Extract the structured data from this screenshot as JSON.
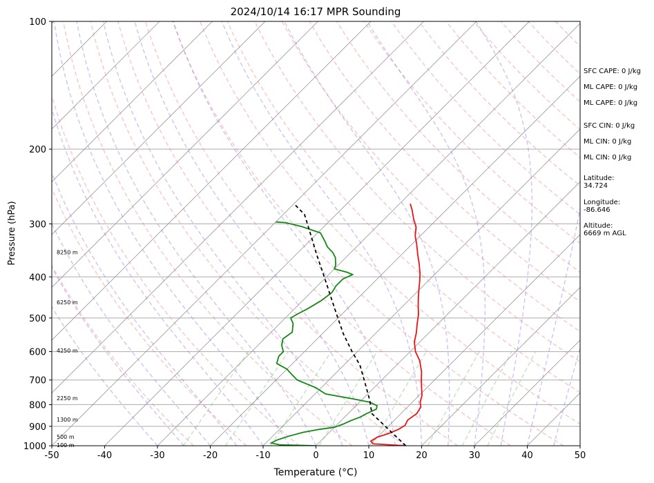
{
  "chart_data": {
    "type": "line",
    "title": "2024/10/14 16:17 MPR Sounding",
    "xlabel": "Temperature (°C)",
    "ylabel": "Pressure (hPa)",
    "xlim": [
      -50,
      50
    ],
    "ylim": [
      1000,
      100
    ],
    "y_scale": "log",
    "skew_t": true,
    "grid": true,
    "x_ticks": [
      "-50",
      "-40",
      "-30",
      "-20",
      "-10",
      "0",
      "10",
      "20",
      "30",
      "40",
      "50"
    ],
    "y_ticks": [
      "100",
      "200",
      "300",
      "400",
      "500",
      "600",
      "700",
      "800",
      "900",
      "1000"
    ],
    "series": [
      {
        "role": "temperature",
        "color": "#ee1111",
        "points": [
          [
            17,
            1000
          ],
          [
            10.5,
            990
          ],
          [
            9.5,
            975
          ],
          [
            10,
            955
          ],
          [
            11.5,
            935
          ],
          [
            12.5,
            915
          ],
          [
            13,
            895
          ],
          [
            12.5,
            870
          ],
          [
            13,
            840
          ],
          [
            12.5,
            810
          ],
          [
            11.5,
            790
          ],
          [
            10.5,
            760
          ],
          [
            9,
            730
          ],
          [
            7.5,
            700
          ],
          [
            6,
            670
          ],
          [
            3.5,
            630
          ],
          [
            1,
            600
          ],
          [
            -1,
            570
          ],
          [
            -2.5,
            540
          ],
          [
            -4,
            515
          ],
          [
            -5.5,
            490
          ],
          [
            -7,
            470
          ],
          [
            -8.5,
            450
          ],
          [
            -10,
            430
          ],
          [
            -11.5,
            410
          ],
          [
            -13,
            392
          ],
          [
            -15,
            372
          ],
          [
            -17,
            354
          ],
          [
            -19,
            336
          ],
          [
            -21,
            320
          ],
          [
            -22.5,
            305
          ],
          [
            -24.5,
            292
          ],
          [
            -26.5,
            278
          ],
          [
            -28,
            269
          ]
        ]
      },
      {
        "role": "dewpoint",
        "color": "#118811",
        "points": [
          [
            0,
            1000
          ],
          [
            -7,
            995
          ],
          [
            -9,
            985
          ],
          [
            -8.5,
            970
          ],
          [
            -7,
            950
          ],
          [
            -5,
            930
          ],
          [
            -2.5,
            915
          ],
          [
            0,
            905
          ],
          [
            1,
            890
          ],
          [
            2,
            870
          ],
          [
            3,
            855
          ],
          [
            3.5,
            840
          ],
          [
            4.5,
            820
          ],
          [
            4,
            805
          ],
          [
            2,
            790
          ],
          [
            -2,
            775
          ],
          [
            -8,
            755
          ],
          [
            -11,
            730
          ],
          [
            -16,
            700
          ],
          [
            -18,
            680
          ],
          [
            -20,
            660
          ],
          [
            -23,
            640
          ],
          [
            -24,
            615
          ],
          [
            -24,
            600
          ],
          [
            -25.5,
            580
          ],
          [
            -26.5,
            560
          ],
          [
            -26,
            540
          ],
          [
            -27.5,
            515
          ],
          [
            -29,
            500
          ],
          [
            -28.5,
            490
          ],
          [
            -27.5,
            475
          ],
          [
            -26.5,
            455
          ],
          [
            -26,
            435
          ],
          [
            -26.5,
            420
          ],
          [
            -26.5,
            405
          ],
          [
            -25.5,
            395
          ],
          [
            -27,
            390
          ],
          [
            -30,
            383
          ],
          [
            -30.5,
            375
          ],
          [
            -32,
            360
          ],
          [
            -33.5,
            350
          ],
          [
            -35.5,
            340
          ],
          [
            -37,
            330
          ],
          [
            -39.5,
            315
          ],
          [
            -44,
            305
          ],
          [
            -48,
            298
          ],
          [
            -50,
            297
          ]
        ]
      },
      {
        "role": "parcel",
        "color": "#000000",
        "points": [
          [
            17,
            1000
          ],
          [
            4.5,
            840
          ],
          [
            1.5,
            780
          ],
          [
            -3,
            705
          ],
          [
            -7,
            645
          ],
          [
            -11,
            600
          ],
          [
            -16,
            545
          ],
          [
            -21,
            490
          ],
          [
            -26,
            440
          ],
          [
            -31,
            395
          ],
          [
            -36,
            355
          ],
          [
            -41,
            318
          ],
          [
            -46,
            285
          ],
          [
            -50,
            269
          ]
        ]
      }
    ],
    "height_labels": [
      {
        "text": "100 m",
        "p": 996
      },
      {
        "text": "500 m",
        "p": 952
      },
      {
        "text": "1300 m",
        "p": 867
      },
      {
        "text": "2250 m",
        "p": 772
      },
      {
        "text": "4250 m",
        "p": 596
      },
      {
        "text": "6250 m",
        "p": 459
      },
      {
        "text": "8250 m",
        "p": 350
      }
    ],
    "annotations": [
      "SFC CAPE: 0 J/kg",
      "ML CAPE: 0 J/kg",
      "ML CAPE: 0 J/kg",
      "SFC CIN: 0 J/kg",
      "ML CIN: 0 J/kg",
      "ML CIN: 0 J/kg",
      "Latitude:\n34.724",
      "Longitude:\n-86.646",
      "Altitude:\n6669 m AGL"
    ],
    "reference_lines": {
      "isotherms_color": "#999999",
      "dry_adiabats_color": "#f08080",
      "moist_adiabats_color": "#7b68ee",
      "mixing_ratio_color": "#4caf50"
    }
  }
}
